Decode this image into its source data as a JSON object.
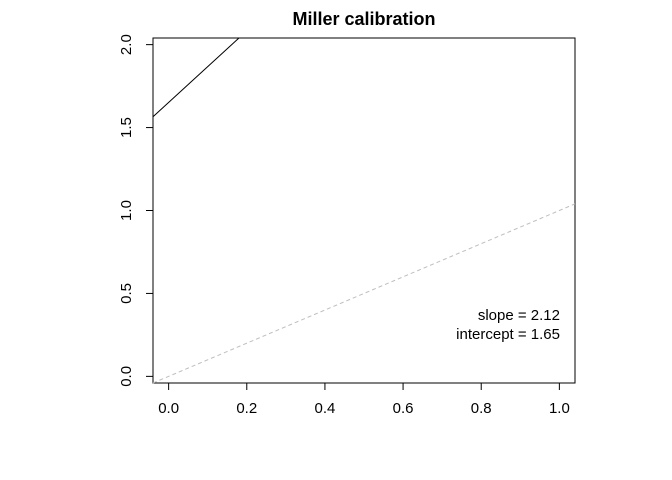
{
  "chart_data": {
    "type": "line",
    "title": "Miller calibration",
    "xlabel": "",
    "ylabel": "",
    "xlim": [
      -0.04,
      1.04
    ],
    "ylim": [
      -0.04,
      2.04
    ],
    "x_ticks": [
      0.0,
      0.2,
      0.4,
      0.6,
      0.8,
      1.0
    ],
    "x_tick_labels": [
      "0.0",
      "0.2",
      "0.4",
      "0.6",
      "0.8",
      "1.0"
    ],
    "y_ticks": [
      0.0,
      0.5,
      1.0,
      1.5,
      2.0
    ],
    "y_tick_labels": [
      "0.0",
      "0.5",
      "1.0",
      "1.5",
      "2.0"
    ],
    "grid": false,
    "series": [
      {
        "style": "solid",
        "color": "#000000",
        "x": [
          -0.04,
          0.18
        ],
        "y": [
          1.565,
          2.04
        ]
      },
      {
        "style": "dashed",
        "color": "#bebebe",
        "x": [
          -0.04,
          1.04
        ],
        "y": [
          -0.04,
          1.04
        ]
      }
    ],
    "annotations": {
      "slope": "slope = 2.12",
      "intercept": "intercept = 1.65"
    }
  }
}
